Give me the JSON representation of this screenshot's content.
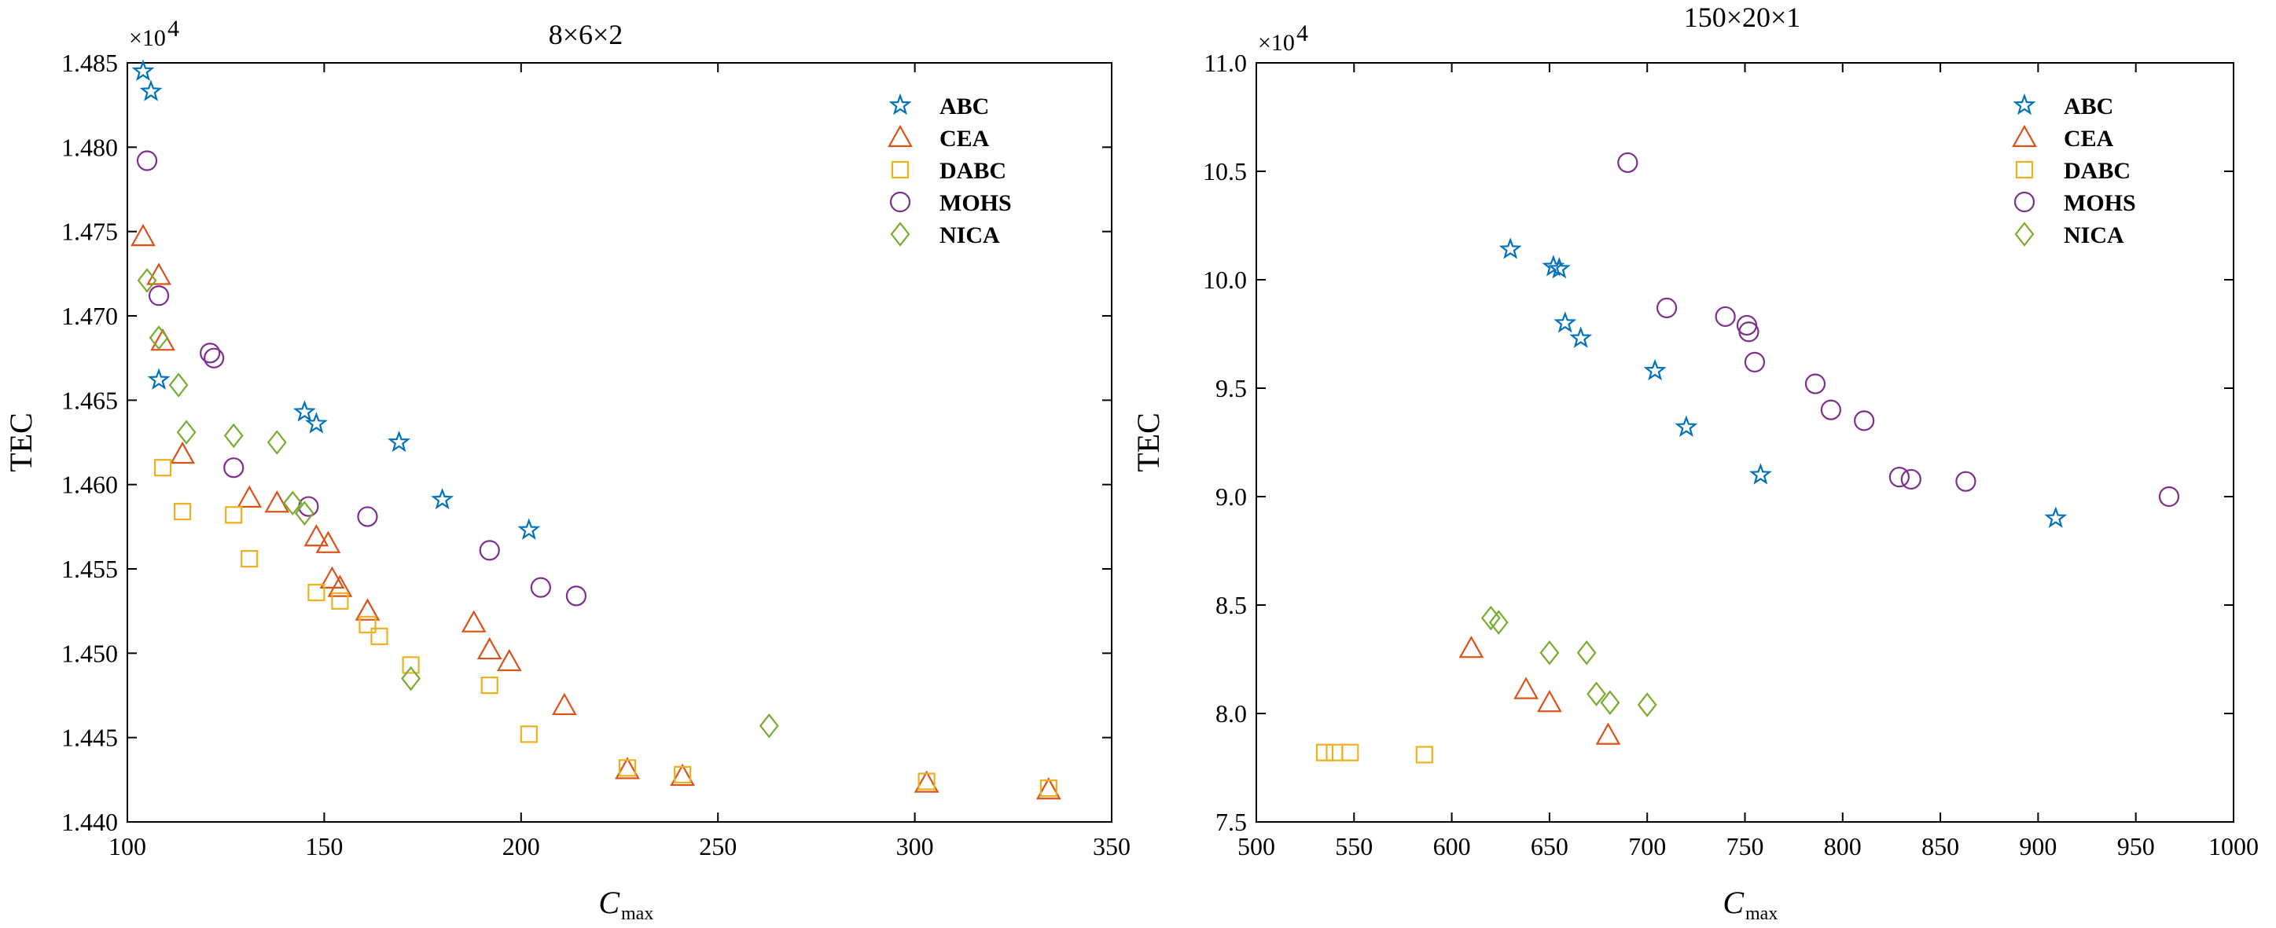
{
  "chart_data": [
    {
      "type": "scatter",
      "title": "8×6×2",
      "xlabel": "C",
      "xlabel_sub": "max",
      "ylabel": "TEC",
      "y_multiplier": "×10",
      "y_multiplier_exp": "4",
      "xlim": [
        100,
        350
      ],
      "ylim": [
        1.44,
        1.485
      ],
      "xticks": [
        100,
        150,
        200,
        250,
        300,
        350
      ],
      "xtick_labels": [
        "100",
        "150",
        "200",
        "250",
        "300",
        "350"
      ],
      "yticks": [
        1.44,
        1.445,
        1.45,
        1.455,
        1.46,
        1.465,
        1.47,
        1.475,
        1.48,
        1.485
      ],
      "ytick_labels": [
        "1.440",
        "1.445",
        "1.450",
        "1.455",
        "1.460",
        "1.465",
        "1.470",
        "1.475",
        "1.480",
        "1.485"
      ],
      "legend_position": "top-right",
      "series": [
        {
          "name": "ABC",
          "marker": "star",
          "color": "#0072BD",
          "points": [
            [
              104,
              1.4845
            ],
            [
              106,
              1.4833
            ],
            [
              108,
              1.4662
            ],
            [
              145,
              1.4643
            ],
            [
              148,
              1.4636
            ],
            [
              169,
              1.4625
            ],
            [
              180,
              1.4591
            ],
            [
              202,
              1.4573
            ]
          ]
        },
        {
          "name": "CEA",
          "marker": "triangle",
          "color": "#D95319",
          "points": [
            [
              104,
              1.4747
            ],
            [
              108,
              1.4724
            ],
            [
              109,
              1.4685
            ],
            [
              114,
              1.4618
            ],
            [
              131,
              1.4592
            ],
            [
              138,
              1.4589
            ],
            [
              148,
              1.4569
            ],
            [
              151,
              1.4565
            ],
            [
              152,
              1.4544
            ],
            [
              154,
              1.4539
            ],
            [
              161,
              1.4525
            ],
            [
              188,
              1.4518
            ],
            [
              192,
              1.4502
            ],
            [
              197,
              1.4495
            ],
            [
              211,
              1.4469
            ],
            [
              227,
              1.4431
            ],
            [
              241,
              1.4427
            ],
            [
              303,
              1.4423
            ],
            [
              334,
              1.4419
            ]
          ]
        },
        {
          "name": "DABC",
          "marker": "square",
          "color": "#EDB120",
          "points": [
            [
              109,
              1.461
            ],
            [
              114,
              1.4584
            ],
            [
              127,
              1.4582
            ],
            [
              131,
              1.4556
            ],
            [
              148,
              1.4536
            ],
            [
              154,
              1.4531
            ],
            [
              161,
              1.4517
            ],
            [
              164,
              1.451
            ],
            [
              172,
              1.4493
            ],
            [
              192,
              1.4481
            ],
            [
              202,
              1.4452
            ],
            [
              227,
              1.4432
            ],
            [
              241,
              1.4428
            ],
            [
              303,
              1.4424
            ],
            [
              334,
              1.442
            ]
          ]
        },
        {
          "name": "MOHS",
          "marker": "circle",
          "color": "#7E2F8E",
          "points": [
            [
              105,
              1.4792
            ],
            [
              108,
              1.4712
            ],
            [
              121,
              1.4678
            ],
            [
              122,
              1.4675
            ],
            [
              127,
              1.461
            ],
            [
              146,
              1.4587
            ],
            [
              161,
              1.4581
            ],
            [
              192,
              1.4561
            ],
            [
              205,
              1.4539
            ],
            [
              214,
              1.4534
            ]
          ]
        },
        {
          "name": "NICA",
          "marker": "diamond",
          "color": "#77AC30",
          "points": [
            [
              105,
              1.4721
            ],
            [
              108,
              1.4687
            ],
            [
              113,
              1.4659
            ],
            [
              115,
              1.4631
            ],
            [
              127,
              1.4629
            ],
            [
              138,
              1.4625
            ],
            [
              142,
              1.4589
            ],
            [
              145,
              1.4583
            ],
            [
              172,
              1.4485
            ],
            [
              263,
              1.4457
            ]
          ]
        }
      ]
    },
    {
      "type": "scatter",
      "title": "150×20×1",
      "xlabel": "C",
      "xlabel_sub": "max",
      "ylabel": "TEC",
      "y_multiplier": "×10",
      "y_multiplier_exp": "4",
      "xlim": [
        500,
        1000
      ],
      "ylim": [
        7.5,
        11.0
      ],
      "xticks": [
        500,
        550,
        600,
        650,
        700,
        750,
        800,
        850,
        900,
        950,
        1000
      ],
      "xtick_labels": [
        "500",
        "550",
        "600",
        "650",
        "700",
        "750",
        "800",
        "850",
        "900",
        "950",
        "1000"
      ],
      "yticks": [
        7.5,
        8.0,
        8.5,
        9.0,
        9.5,
        10.0,
        10.5,
        11.0
      ],
      "ytick_labels": [
        "7.5",
        "8.0",
        "8.5",
        "9.0",
        "9.5",
        "10.0",
        "10.5",
        "11.0"
      ],
      "legend_position": "top-right",
      "series": [
        {
          "name": "ABC",
          "marker": "star",
          "color": "#0072BD",
          "points": [
            [
              630,
              10.14
            ],
            [
              652,
              10.06
            ],
            [
              655,
              10.05
            ],
            [
              658,
              9.8
            ],
            [
              666,
              9.73
            ],
            [
              704,
              9.58
            ],
            [
              720,
              9.32
            ],
            [
              758,
              9.1
            ],
            [
              909,
              8.9
            ]
          ]
        },
        {
          "name": "CEA",
          "marker": "triangle",
          "color": "#D95319",
          "points": [
            [
              610,
              8.3
            ],
            [
              638,
              8.11
            ],
            [
              650,
              8.05
            ],
            [
              680,
              7.9
            ]
          ]
        },
        {
          "name": "DABC",
          "marker": "square",
          "color": "#EDB120",
          "points": [
            [
              535,
              7.82
            ],
            [
              540,
              7.82
            ],
            [
              548,
              7.82
            ],
            [
              586,
              7.81
            ]
          ]
        },
        {
          "name": "MOHS",
          "marker": "circle",
          "color": "#7E2F8E",
          "points": [
            [
              690,
              10.54
            ],
            [
              710,
              9.87
            ],
            [
              740,
              9.83
            ],
            [
              751,
              9.79
            ],
            [
              752,
              9.76
            ],
            [
              755,
              9.62
            ],
            [
              786,
              9.52
            ],
            [
              794,
              9.4
            ],
            [
              811,
              9.35
            ],
            [
              829,
              9.09
            ],
            [
              835,
              9.08
            ],
            [
              863,
              9.07
            ],
            [
              967,
              9.0
            ]
          ]
        },
        {
          "name": "NICA",
          "marker": "diamond",
          "color": "#77AC30",
          "points": [
            [
              620,
              8.44
            ],
            [
              624,
              8.42
            ],
            [
              650,
              8.28
            ],
            [
              669,
              8.28
            ],
            [
              674,
              8.09
            ],
            [
              681,
              8.05
            ],
            [
              700,
              8.04
            ]
          ]
        }
      ]
    }
  ]
}
